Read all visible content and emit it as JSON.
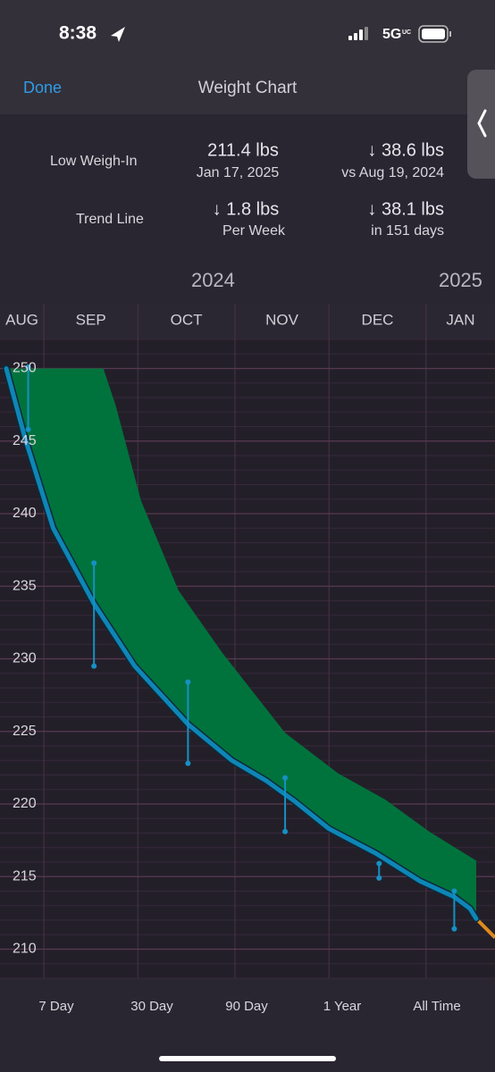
{
  "status_bar": {
    "time": "8:38",
    "network": "5G",
    "network_badge": "UC"
  },
  "nav": {
    "done": "Done",
    "title": "Weight Chart"
  },
  "stats": {
    "low": {
      "label": "Low Weigh-In",
      "value": "211.4 lbs",
      "date": "Jan 17, 2025",
      "change": "↓ 38.6 lbs",
      "change_note": "vs Aug 19, 2024"
    },
    "trend": {
      "label": "Trend Line",
      "value": "↓ 1.8 lbs",
      "value_note": "Per Week",
      "change": "↓ 38.1 lbs",
      "change_note": "in 151 days"
    }
  },
  "chart_data": {
    "type": "line",
    "years": [
      "2024",
      "2025"
    ],
    "months": [
      "AUG",
      "SEP",
      "OCT",
      "NOV",
      "DEC",
      "JAN"
    ],
    "month_bounds": [
      -18,
      13,
      43,
      74,
      104,
      135,
      166
    ],
    "xlim": [
      -1,
      157
    ],
    "ylim": [
      208,
      252
    ],
    "yticks": [
      210,
      215,
      220,
      225,
      230,
      235,
      240,
      245,
      250
    ],
    "grid": true,
    "trend": {
      "color": "#0e86b6",
      "x": [
        1,
        7,
        16,
        29,
        42,
        59,
        73,
        84,
        93,
        104,
        119,
        133,
        144,
        149,
        151
      ],
      "values": [
        250,
        245.2,
        239,
        233.8,
        229.5,
        225.5,
        223,
        221.6,
        220.2,
        218.3,
        216.6,
        214.7,
        213.6,
        212.8,
        212.1
      ]
    },
    "band_upper": {
      "color": "#00733d",
      "x": [
        1,
        32,
        36,
        44,
        56,
        70,
        90,
        107,
        122,
        136,
        151
      ],
      "values": [
        250,
        250,
        247.4,
        240.9,
        234.7,
        230.4,
        224.9,
        222.1,
        220.3,
        218.1,
        216.1
      ]
    },
    "projection": {
      "color": "#e08a1e",
      "x": [
        151,
        157
      ],
      "values": [
        212.1,
        210.8
      ]
    },
    "ranges": {
      "color": "#1591c4",
      "x": [
        8,
        29,
        59,
        90,
        120,
        144
      ],
      "high": [
        250.1,
        236.6,
        228.4,
        221.8,
        215.9,
        214.0
      ],
      "low": [
        245.8,
        229.5,
        222.8,
        218.1,
        214.9,
        211.4
      ]
    }
  },
  "tabs": [
    "7 Day",
    "30 Day",
    "90 Day",
    "1 Year",
    "All Time"
  ]
}
